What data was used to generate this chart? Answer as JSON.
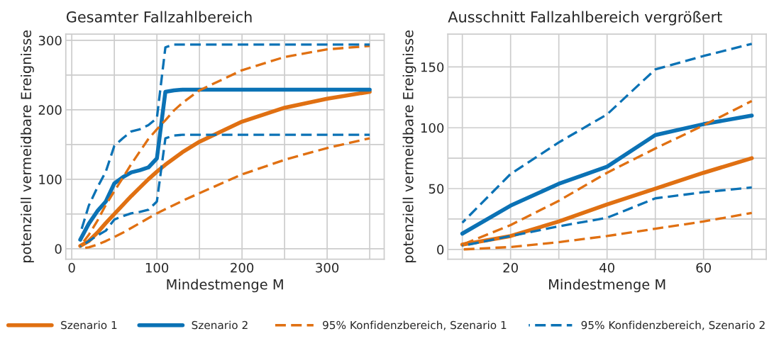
{
  "chart_data": [
    {
      "type": "line",
      "title": "Gesamter Fallzahlbereich",
      "xlabel": "Mindestmenge M",
      "ylabel": "potenziell vermeidbare Ereignisse",
      "x": [
        10,
        20,
        30,
        40,
        50,
        60,
        70,
        80,
        90,
        100,
        110,
        120,
        130,
        150,
        200,
        250,
        300,
        350
      ],
      "series": [
        {
          "name": "Szenario 1",
          "color": "#e07012",
          "line_style": "solid",
          "values": [
            4,
            11,
            23,
            37,
            50,
            63,
            76,
            88,
            100,
            111,
            121,
            130,
            139,
            154,
            183,
            203,
            216,
            226
          ]
        },
        {
          "name": "Szenario 2",
          "color": "#0b72b5",
          "line_style": "solid",
          "values": [
            13,
            36,
            54,
            68,
            94,
            103,
            110,
            113,
            117,
            130,
            226,
            228,
            229,
            229,
            229,
            229,
            229,
            229
          ]
        },
        {
          "name": "95% Konfidenzbereich, Szenario 1",
          "color": "#e07012",
          "line_style": "dashed",
          "values": [
            0,
            2,
            6,
            11,
            17,
            23,
            30,
            37,
            44,
            51,
            57,
            63,
            69,
            80,
            107,
            128,
            145,
            159
          ]
        },
        {
          "color": "#e07012",
          "line_style": "dashed",
          "values": [
            4,
            20,
            40,
            63,
            83,
            102,
            122,
            140,
            158,
            172,
            185,
            199,
            210,
            228,
            257,
            276,
            287,
            292
          ]
        },
        {
          "name": "95% Konfidenzbereich, Szenario 2",
          "color": "#0b72b5",
          "line_style": "dashed",
          "values": [
            3,
            11,
            19,
            26,
            42,
            47,
            51,
            53,
            56,
            68,
            159,
            163,
            164,
            164,
            164,
            164,
            164,
            164
          ]
        },
        {
          "color": "#0b72b5",
          "line_style": "dashed",
          "values": [
            22,
            62,
            88,
            111,
            148,
            159,
            169,
            172,
            178,
            188,
            290,
            294,
            294,
            294,
            294,
            294,
            294,
            294
          ]
        }
      ],
      "xlim": [
        -7,
        367
      ],
      "ylim": [
        -15,
        309
      ],
      "xticks": [
        0,
        {
          "value": 50,
          "label": null
        },
        100,
        {
          "value": 150,
          "label": null
        },
        200,
        {
          "value": 250,
          "label": null
        },
        300,
        {
          "value": 350,
          "label": null
        }
      ],
      "yticks": [
        0,
        {
          "value": 50,
          "label": null
        },
        100,
        {
          "value": 150,
          "label": null
        },
        200,
        {
          "value": 250,
          "label": null
        },
        300
      ],
      "grid": true,
      "legend": "bottom"
    },
    {
      "type": "line",
      "title": "Ausschnitt Fallzahlbereich vergrößert",
      "xlabel": "Mindestmenge M",
      "ylabel": "potenziell vermeidbare Ereignisse",
      "x": [
        10,
        20,
        30,
        40,
        50,
        60,
        70
      ],
      "series": [
        {
          "name": "Szenario 1",
          "color": "#e07012",
          "line_style": "solid",
          "values": [
            4,
            11,
            23,
            37,
            50,
            63,
            75
          ]
        },
        {
          "name": "Szenario 2",
          "color": "#0b72b5",
          "line_style": "solid",
          "values": [
            13,
            36,
            54,
            68,
            94,
            103,
            110
          ]
        },
        {
          "name": "95% Konfidenzbereich, Szenario 1",
          "color": "#e07012",
          "line_style": "dashed",
          "values": [
            0,
            2,
            6,
            11,
            17,
            23,
            30
          ]
        },
        {
          "color": "#e07012",
          "line_style": "dashed",
          "values": [
            4,
            20,
            40,
            63,
            83,
            102,
            122
          ]
        },
        {
          "name": "95% Konfidenzbereich, Szenario 2",
          "color": "#0b72b5",
          "line_style": "dashed",
          "values": [
            3,
            11,
            19,
            26,
            42,
            47,
            51
          ]
        },
        {
          "color": "#0b72b5",
          "line_style": "dashed",
          "values": [
            22,
            62,
            88,
            111,
            148,
            159,
            169
          ]
        }
      ],
      "xlim": [
        7,
        73
      ],
      "ylim": [
        -8,
        177
      ],
      "xticks": [
        {
          "value": 10,
          "label": null
        },
        20,
        {
          "value": 30,
          "label": null
        },
        40,
        {
          "value": 50,
          "label": null
        },
        60,
        {
          "value": 70,
          "label": null
        }
      ],
      "yticks": [
        0,
        {
          "value": 25,
          "label": null
        },
        50,
        {
          "value": 75,
          "label": null
        },
        100,
        {
          "value": 125,
          "label": null
        },
        150
      ],
      "grid": true
    }
  ]
}
